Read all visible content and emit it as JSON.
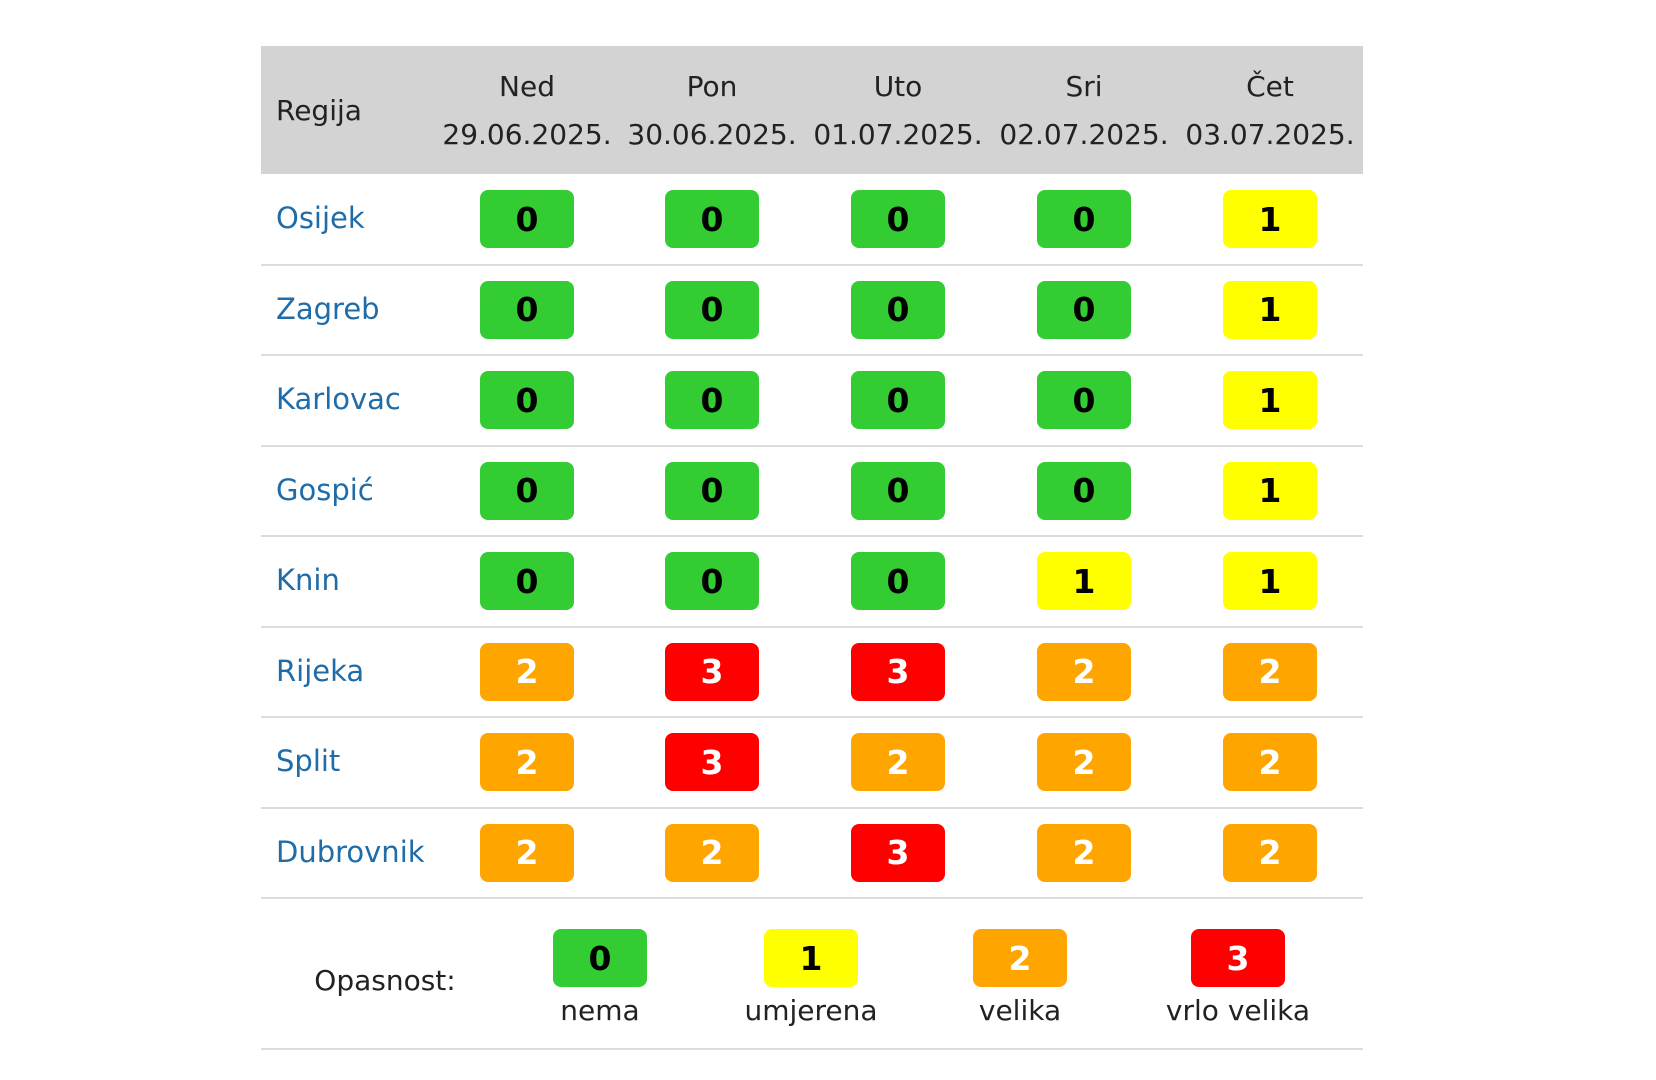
{
  "header": {
    "region_label": "Regija",
    "days": [
      {
        "day": "Ned",
        "date": "29.06.2025."
      },
      {
        "day": "Pon",
        "date": "30.06.2025."
      },
      {
        "day": "Uto",
        "date": "01.07.2025."
      },
      {
        "day": "Sri",
        "date": "02.07.2025."
      },
      {
        "day": "Čet",
        "date": "03.07.2025."
      }
    ]
  },
  "rows": [
    {
      "region": "Osijek",
      "levels": [
        0,
        0,
        0,
        0,
        1
      ]
    },
    {
      "region": "Zagreb",
      "levels": [
        0,
        0,
        0,
        0,
        1
      ]
    },
    {
      "region": "Karlovac",
      "levels": [
        0,
        0,
        0,
        0,
        1
      ]
    },
    {
      "region": "Gospić",
      "levels": [
        0,
        0,
        0,
        0,
        1
      ]
    },
    {
      "region": "Knin",
      "levels": [
        0,
        0,
        0,
        1,
        1
      ]
    },
    {
      "region": "Rijeka",
      "levels": [
        2,
        3,
        3,
        2,
        2
      ]
    },
    {
      "region": "Split",
      "levels": [
        2,
        3,
        2,
        2,
        2
      ]
    },
    {
      "region": "Dubrovnik",
      "levels": [
        2,
        2,
        3,
        2,
        2
      ]
    }
  ],
  "legend": {
    "label": "Opasnost:",
    "items": [
      {
        "level": 0,
        "text": "nema",
        "color": "#33cc33",
        "text_color": "#000000"
      },
      {
        "level": 1,
        "text": "umjerena",
        "color": "#ffff00",
        "text_color": "#000000"
      },
      {
        "level": 2,
        "text": "velika",
        "color": "#ffa500",
        "text_color": "#ffffff"
      },
      {
        "level": 3,
        "text": "vrlo velika",
        "color": "#ff0000",
        "text_color": "#ffffff"
      }
    ]
  }
}
